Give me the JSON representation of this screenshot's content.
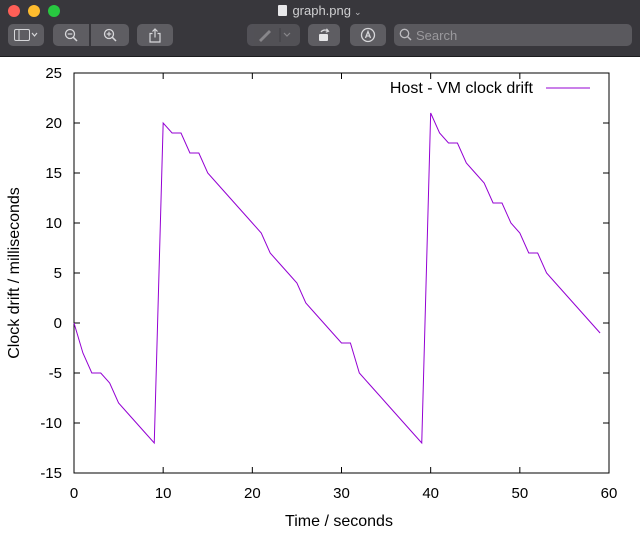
{
  "window": {
    "title": "graph.png",
    "chevron": "⌄"
  },
  "toolbar": {
    "sidebar_button_icon": "sidebar-icon",
    "zoom_out_icon": "zoom-out-icon",
    "zoom_in_icon": "zoom-in-icon",
    "share_icon": "share-icon",
    "markup_icon": "pen-icon",
    "rotate_icon": "rotate-icon",
    "annotate_icon": "markup-circle-icon",
    "search_placeholder": "Search"
  },
  "colors": {
    "titlebar": "#38373c",
    "button": "#5e5d62",
    "series": "#9400d3"
  },
  "chart_data": {
    "type": "line",
    "title": "",
    "xlabel": "Time / seconds",
    "ylabel": "Clock drift / milliseconds",
    "xlim": [
      0,
      60
    ],
    "ylim": [
      -15,
      25
    ],
    "xticks": [
      0,
      10,
      20,
      30,
      40,
      50,
      60
    ],
    "yticks": [
      -15,
      -10,
      -5,
      0,
      5,
      10,
      15,
      20,
      25
    ],
    "grid": false,
    "legend_position": "top-right",
    "series": [
      {
        "name": "Host - VM clock drift",
        "color": "#9400d3",
        "x": [
          0,
          1,
          2,
          3,
          4,
          5,
          6,
          7,
          8,
          9,
          10,
          11,
          12,
          13,
          14,
          15,
          16,
          17,
          18,
          19,
          20,
          21,
          22,
          23,
          24,
          25,
          26,
          27,
          28,
          29,
          30,
          31,
          32,
          33,
          34,
          35,
          36,
          37,
          38,
          39,
          40,
          41,
          42,
          43,
          44,
          45,
          46,
          47,
          48,
          49,
          50,
          51,
          52,
          53,
          54,
          55,
          56,
          57,
          58,
          59
        ],
        "y": [
          0,
          -3,
          -5,
          -5,
          -6,
          -8,
          -9,
          -10,
          -11,
          -12,
          20,
          19,
          19,
          17,
          17,
          15,
          14,
          13,
          12,
          11,
          10,
          9,
          7,
          6,
          5,
          4,
          2,
          1,
          0,
          -1,
          -2,
          -2,
          -5,
          -6,
          -7,
          -8,
          -9,
          -10,
          -11,
          -12,
          21,
          19,
          18,
          18,
          16,
          15,
          14,
          12,
          12,
          10,
          9,
          7,
          7,
          5,
          4,
          3,
          2,
          1,
          0,
          -1
        ]
      }
    ]
  }
}
